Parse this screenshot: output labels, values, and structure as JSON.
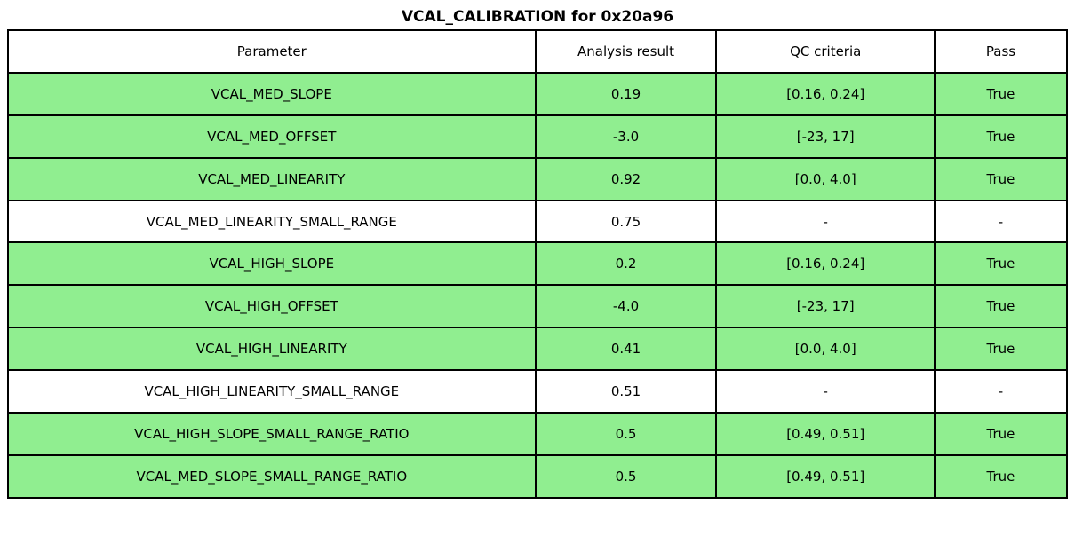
{
  "title": "VCAL_CALIBRATION for 0x20a96",
  "colors": {
    "pass_row_bg": "#90ee90",
    "neutral_row_bg": "#ffffff",
    "header_row_bg": "#ffffff",
    "border": "#000000",
    "text": "#000000"
  },
  "chart_data": {
    "type": "table",
    "title": "VCAL_CALIBRATION for 0x20a96",
    "columns": [
      "Parameter",
      "Analysis result",
      "QC criteria",
      "Pass"
    ],
    "rows": [
      {
        "parameter": "VCAL_MED_SLOPE",
        "analysis_result": "0.19",
        "qc_criteria": "[0.16, 0.24]",
        "pass": "True",
        "highlighted": true
      },
      {
        "parameter": "VCAL_MED_OFFSET",
        "analysis_result": "-3.0",
        "qc_criteria": "[-23, 17]",
        "pass": "True",
        "highlighted": true
      },
      {
        "parameter": "VCAL_MED_LINEARITY",
        "analysis_result": "0.92",
        "qc_criteria": "[0.0, 4.0]",
        "pass": "True",
        "highlighted": true
      },
      {
        "parameter": "VCAL_MED_LINEARITY_SMALL_RANGE",
        "analysis_result": "0.75",
        "qc_criteria": "-",
        "pass": "-",
        "highlighted": false
      },
      {
        "parameter": "VCAL_HIGH_SLOPE",
        "analysis_result": "0.2",
        "qc_criteria": "[0.16, 0.24]",
        "pass": "True",
        "highlighted": true
      },
      {
        "parameter": "VCAL_HIGH_OFFSET",
        "analysis_result": "-4.0",
        "qc_criteria": "[-23, 17]",
        "pass": "True",
        "highlighted": true
      },
      {
        "parameter": "VCAL_HIGH_LINEARITY",
        "analysis_result": "0.41",
        "qc_criteria": "[0.0, 4.0]",
        "pass": "True",
        "highlighted": true
      },
      {
        "parameter": "VCAL_HIGH_LINEARITY_SMALL_RANGE",
        "analysis_result": "0.51",
        "qc_criteria": "-",
        "pass": "-",
        "highlighted": false
      },
      {
        "parameter": "VCAL_HIGH_SLOPE_SMALL_RANGE_RATIO",
        "analysis_result": "0.5",
        "qc_criteria": "[0.49, 0.51]",
        "pass": "True",
        "highlighted": true
      },
      {
        "parameter": "VCAL_MED_SLOPE_SMALL_RANGE_RATIO",
        "analysis_result": "0.5",
        "qc_criteria": "[0.49, 0.51]",
        "pass": "True",
        "highlighted": true
      }
    ]
  }
}
